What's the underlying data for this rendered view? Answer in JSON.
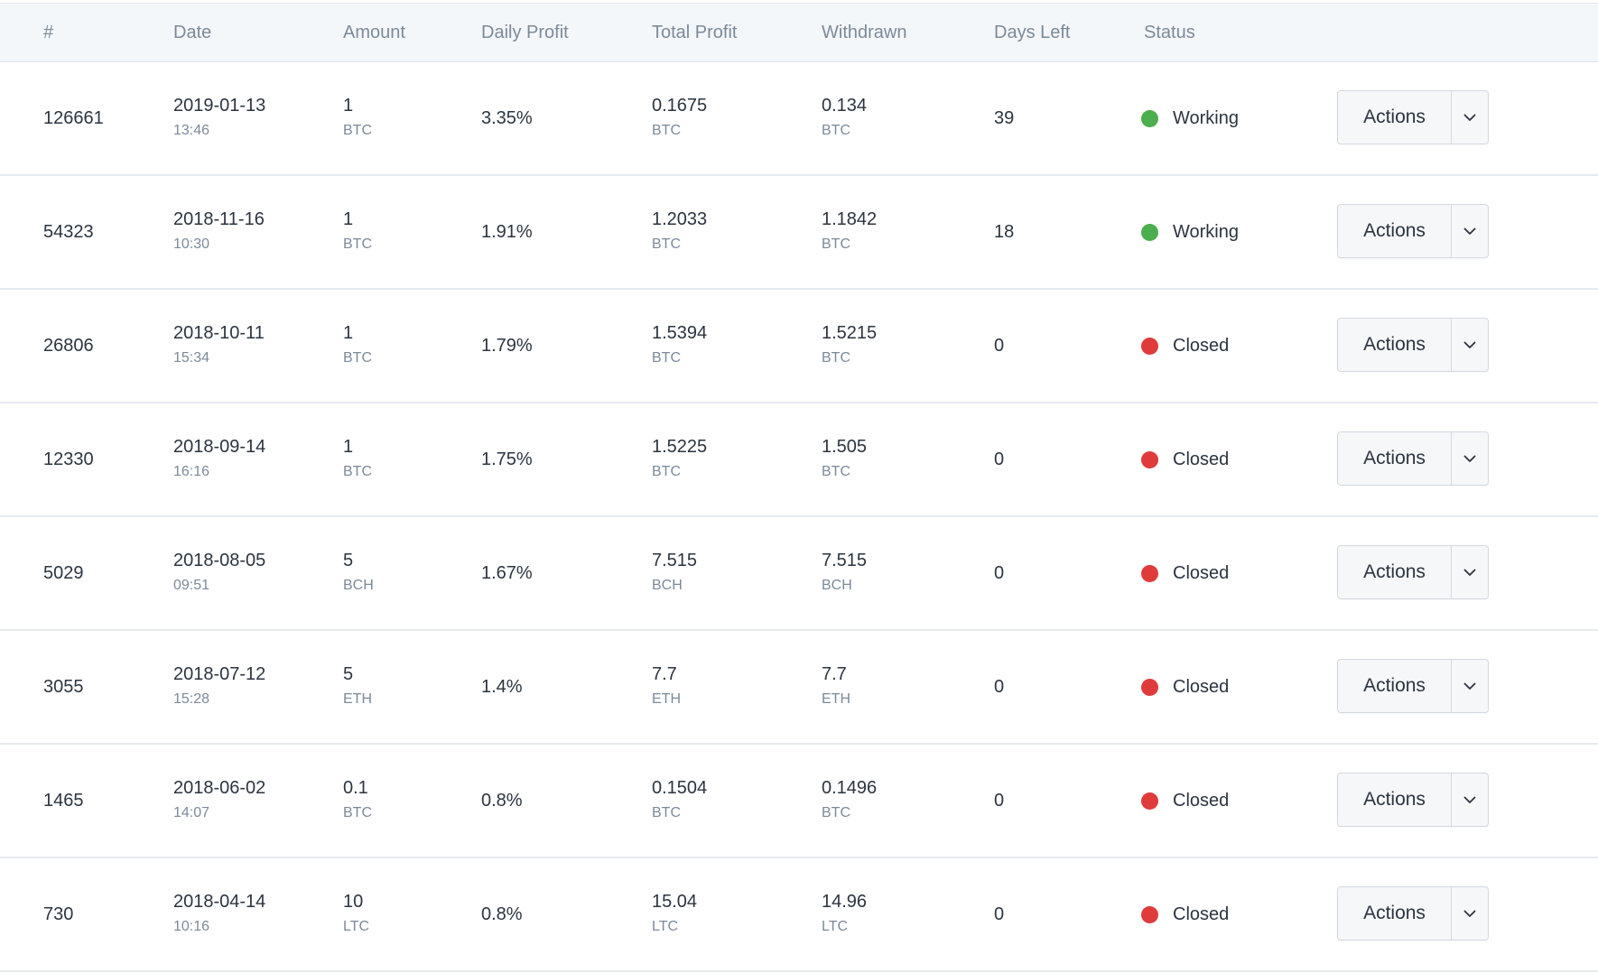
{
  "table": {
    "headers": {
      "id": "#",
      "date": "Date",
      "amount": "Amount",
      "daily_profit": "Daily Profit",
      "total_profit": "Total Profit",
      "withdrawn": "Withdrawn",
      "days_left": "Days Left",
      "status": "Status"
    },
    "action_label": "Actions",
    "rows": [
      {
        "id": "126661",
        "date": "2019-01-13",
        "time": "13:46",
        "amount": "1",
        "amount_cur": "BTC",
        "daily_profit": "3.35%",
        "total_profit": "0.1675",
        "total_cur": "BTC",
        "withdrawn": "0.134",
        "withdrawn_cur": "BTC",
        "days_left": "39",
        "status": "Working",
        "status_color": "#4cae4c"
      },
      {
        "id": "54323",
        "date": "2018-11-16",
        "time": "10:30",
        "amount": "1",
        "amount_cur": "BTC",
        "daily_profit": "1.91%",
        "total_profit": "1.2033",
        "total_cur": "BTC",
        "withdrawn": "1.1842",
        "withdrawn_cur": "BTC",
        "days_left": "18",
        "status": "Working",
        "status_color": "#4cae4c"
      },
      {
        "id": "26806",
        "date": "2018-10-11",
        "time": "15:34",
        "amount": "1",
        "amount_cur": "BTC",
        "daily_profit": "1.79%",
        "total_profit": "1.5394",
        "total_cur": "BTC",
        "withdrawn": "1.5215",
        "withdrawn_cur": "BTC",
        "days_left": "0",
        "status": "Closed",
        "status_color": "#e03b3b"
      },
      {
        "id": "12330",
        "date": "2018-09-14",
        "time": "16:16",
        "amount": "1",
        "amount_cur": "BTC",
        "daily_profit": "1.75%",
        "total_profit": "1.5225",
        "total_cur": "BTC",
        "withdrawn": "1.505",
        "withdrawn_cur": "BTC",
        "days_left": "0",
        "status": "Closed",
        "status_color": "#e03b3b"
      },
      {
        "id": "5029",
        "date": "2018-08-05",
        "time": "09:51",
        "amount": "5",
        "amount_cur": "BCH",
        "daily_profit": "1.67%",
        "total_profit": "7.515",
        "total_cur": "BCH",
        "withdrawn": "7.515",
        "withdrawn_cur": "BCH",
        "days_left": "0",
        "status": "Closed",
        "status_color": "#e03b3b"
      },
      {
        "id": "3055",
        "date": "2018-07-12",
        "time": "15:28",
        "amount": "5",
        "amount_cur": "ETH",
        "daily_profit": "1.4%",
        "total_profit": "7.7",
        "total_cur": "ETH",
        "withdrawn": "7.7",
        "withdrawn_cur": "ETH",
        "days_left": "0",
        "status": "Closed",
        "status_color": "#e03b3b"
      },
      {
        "id": "1465",
        "date": "2018-06-02",
        "time": "14:07",
        "amount": "0.1",
        "amount_cur": "BTC",
        "daily_profit": "0.8%",
        "total_profit": "0.1504",
        "total_cur": "BTC",
        "withdrawn": "0.1496",
        "withdrawn_cur": "BTC",
        "days_left": "0",
        "status": "Closed",
        "status_color": "#e03b3b"
      },
      {
        "id": "730",
        "date": "2018-04-14",
        "time": "10:16",
        "amount": "10",
        "amount_cur": "LTC",
        "daily_profit": "0.8%",
        "total_profit": "15.04",
        "total_cur": "LTC",
        "withdrawn": "14.96",
        "withdrawn_cur": "LTC",
        "days_left": "0",
        "status": "Closed",
        "status_color": "#e03b3b"
      }
    ]
  }
}
